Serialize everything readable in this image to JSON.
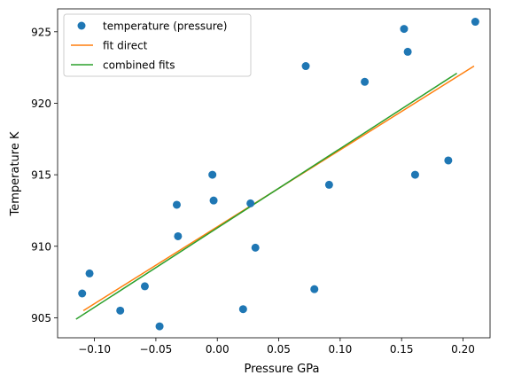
{
  "chart_data": {
    "type": "scatter",
    "title": "",
    "xlabel": "Pressure GPa",
    "ylabel": "Temperature K",
    "xlim": [
      -0.13,
      0.222
    ],
    "ylim": [
      903.6,
      926.6
    ],
    "xticks": [
      -0.1,
      -0.05,
      0.0,
      0.05,
      0.1,
      0.15,
      0.2
    ],
    "xtick_labels": [
      "−0.10",
      "−0.05",
      "0.00",
      "0.05",
      "0.10",
      "0.15",
      "0.20"
    ],
    "yticks": [
      905,
      910,
      915,
      920,
      925
    ],
    "ytick_labels": [
      "905",
      "910",
      "915",
      "920",
      "925"
    ],
    "grid": false,
    "legend_position": "top-left",
    "series": [
      {
        "name": "temperature (pressure)",
        "kind": "scatter",
        "color": "#1f77b4",
        "points": [
          [
            -0.11,
            906.7
          ],
          [
            -0.104,
            908.1
          ],
          [
            -0.079,
            905.5
          ],
          [
            -0.059,
            907.2
          ],
          [
            -0.047,
            904.4
          ],
          [
            -0.033,
            912.9
          ],
          [
            -0.032,
            910.7
          ],
          [
            -0.004,
            915.0
          ],
          [
            -0.003,
            913.2
          ],
          [
            0.021,
            905.6
          ],
          [
            0.027,
            913.0
          ],
          [
            0.031,
            909.9
          ],
          [
            0.072,
            922.6
          ],
          [
            0.079,
            907.0
          ],
          [
            0.091,
            914.3
          ],
          [
            0.12,
            921.5
          ],
          [
            0.152,
            925.2
          ],
          [
            0.155,
            923.6
          ],
          [
            0.161,
            915.0
          ],
          [
            0.188,
            916.0
          ],
          [
            0.21,
            925.7
          ]
        ]
      },
      {
        "name": "fit direct",
        "kind": "line",
        "color": "#ff7f0e",
        "points": [
          [
            -0.109,
            905.5
          ],
          [
            0.209,
            922.6
          ]
        ]
      },
      {
        "name": "combined fits",
        "kind": "line",
        "color": "#2ca02c",
        "points": [
          [
            -0.115,
            904.9
          ],
          [
            0.195,
            922.1
          ]
        ]
      }
    ]
  }
}
